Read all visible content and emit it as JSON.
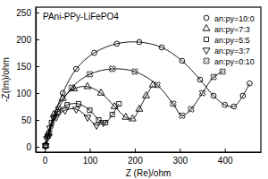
{
  "chart_data": {
    "type": "scatter",
    "title": "PAni-PPy-LiFePO4",
    "x_label": "Z (Re)/ohm",
    "y_label": "-Z(Im)/ohm",
    "xlim": [
      -20,
      480
    ],
    "ylim": [
      -10,
      260
    ],
    "xticks": [
      0,
      100,
      200,
      300,
      400
    ],
    "yticks": [
      0,
      50,
      100,
      150,
      200,
      250
    ],
    "grid": false,
    "legend": "upper right",
    "series": [
      {
        "name": "an:py=10:0",
        "color": "#000000",
        "marker": "circle",
        "line_style": "solid",
        "x": [
          2,
          8,
          20,
          40,
          70,
          110,
          160,
          210,
          260,
          305,
          345,
          375,
          400,
          420,
          440,
          455
        ],
        "values": [
          3,
          20,
          55,
          100,
          145,
          175,
          192,
          195,
          185,
          160,
          125,
          95,
          78,
          75,
          95,
          118
        ]
      },
      {
        "name": "an:py=7:3",
        "color": "#000000",
        "marker": "triangle",
        "line_style": "solid",
        "x": [
          2,
          8,
          20,
          40,
          65,
          95,
          125,
          155,
          180,
          195,
          210,
          225,
          240
        ],
        "values": [
          2,
          25,
          60,
          90,
          108,
          112,
          100,
          75,
          55,
          52,
          70,
          95,
          115
        ]
      },
      {
        "name": "an:py=5:5",
        "color": "#000000",
        "marker": "square",
        "line_style": "solid",
        "x": [
          2,
          6,
          15,
          30,
          50,
          75,
          100,
          120,
          135,
          150,
          165
        ],
        "values": [
          2,
          20,
          45,
          65,
          78,
          80,
          68,
          50,
          45,
          60,
          80
        ]
      },
      {
        "name": "an:py=3:7",
        "color": "#000000",
        "marker": "triangle-down",
        "line_style": "solid",
        "x": [
          2,
          5,
          12,
          25,
          45,
          70,
          95,
          115,
          130
        ],
        "values": [
          2,
          15,
          35,
          55,
          68,
          70,
          55,
          40,
          45
        ]
      },
      {
        "name": "an:py=0:10",
        "color": "#000000",
        "marker": "x",
        "line_style": "solid",
        "x": [
          2,
          10,
          30,
          60,
          100,
          150,
          200,
          250,
          285,
          305,
          325,
          350,
          375,
          395
        ],
        "values": [
          2,
          25,
          70,
          110,
          135,
          145,
          140,
          115,
          80,
          58,
          70,
          100,
          130,
          140
        ]
      }
    ]
  }
}
